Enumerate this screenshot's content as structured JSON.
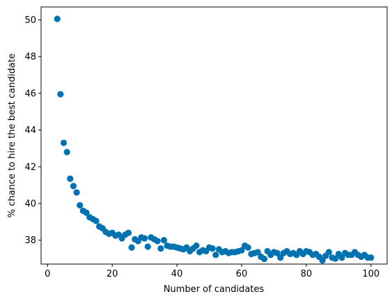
{
  "chart_data": {
    "type": "scatter",
    "title": "",
    "xlabel": "Number of candidates",
    "ylabel": "% chance to hire the best candidate",
    "xlim": [
      -2,
      105
    ],
    "ylim": [
      36.7,
      50.7
    ],
    "xticks": [
      0,
      20,
      40,
      60,
      80,
      100
    ],
    "yticks": [
      38,
      40,
      42,
      44,
      46,
      48,
      50
    ],
    "grid": false,
    "marker_color": "#0072b2",
    "series": [
      {
        "x": [
          3,
          4,
          5,
          6,
          7,
          8,
          9,
          10,
          11,
          12,
          13,
          14,
          15,
          16,
          17,
          18,
          19,
          20,
          21,
          22,
          23,
          24,
          25,
          26,
          27,
          28,
          29,
          30,
          31,
          32,
          33,
          34,
          35,
          36,
          37,
          38,
          39,
          40,
          41,
          42,
          43,
          44,
          45,
          46,
          47,
          48,
          49,
          50,
          51,
          52,
          53,
          54,
          55,
          56,
          57,
          58,
          59,
          60,
          61,
          62,
          63,
          64,
          65,
          66,
          67,
          68,
          69,
          70,
          71,
          72,
          73,
          74,
          75,
          76,
          77,
          78,
          79,
          80,
          81,
          82,
          83,
          84,
          85,
          86,
          87,
          88,
          89,
          90,
          91,
          92,
          93,
          94,
          95,
          96,
          97,
          98,
          99,
          100
        ],
        "y": [
          50.05,
          45.95,
          43.3,
          42.8,
          41.35,
          40.95,
          40.6,
          39.9,
          39.6,
          39.5,
          39.25,
          39.15,
          39.05,
          38.75,
          38.65,
          38.45,
          38.35,
          38.4,
          38.25,
          38.3,
          38.1,
          38.3,
          38.4,
          37.6,
          38.05,
          37.95,
          38.15,
          38.1,
          37.65,
          38.15,
          38.05,
          37.95,
          37.55,
          38.0,
          37.7,
          37.65,
          37.65,
          37.6,
          37.55,
          37.5,
          37.6,
          37.4,
          37.55,
          37.7,
          37.35,
          37.45,
          37.4,
          37.6,
          37.55,
          37.2,
          37.5,
          37.35,
          37.4,
          37.3,
          37.35,
          37.35,
          37.4,
          37.45,
          37.7,
          37.6,
          37.25,
          37.3,
          37.35,
          37.1,
          36.98,
          37.4,
          37.2,
          37.35,
          37.3,
          37.05,
          37.3,
          37.4,
          37.25,
          37.3,
          37.2,
          37.4,
          37.25,
          37.4,
          37.35,
          37.2,
          37.25,
          37.1,
          36.9,
          37.15,
          37.35,
          37.05,
          37.0,
          37.25,
          37.05,
          37.3,
          37.2,
          37.2,
          37.35,
          37.2,
          37.1,
          37.2,
          37.05,
          37.05
        ]
      }
    ]
  }
}
